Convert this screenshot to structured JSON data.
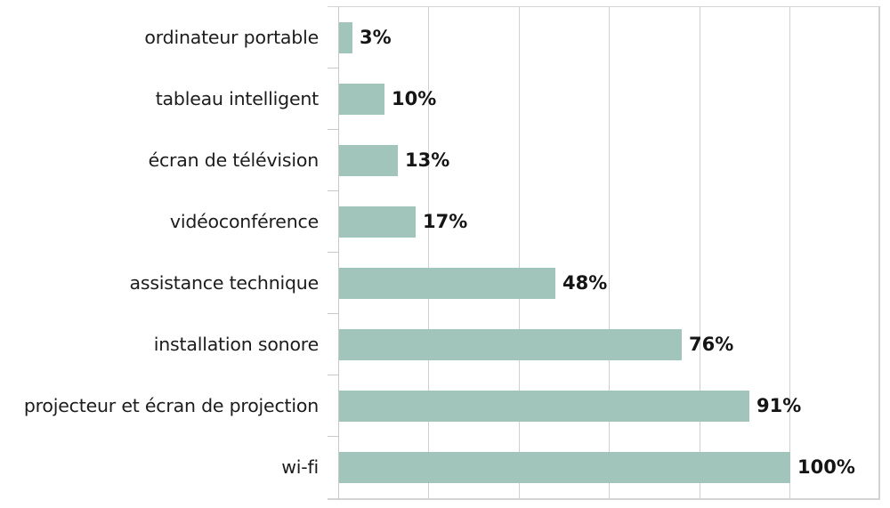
{
  "chart_data": {
    "type": "bar",
    "orientation": "horizontal",
    "title": "",
    "xlabel": "",
    "ylabel": "",
    "categories": [
      "ordinateur portable",
      "tableau intelligent",
      "écran de télévision",
      "vidéoconférence",
      "assistance technique",
      "installation sonore",
      "projecteur et écran de projection",
      "wi-fi"
    ],
    "values": [
      3,
      10,
      13,
      17,
      48,
      76,
      91,
      100
    ],
    "value_labels": [
      "3%",
      "10%",
      "13%",
      "17%",
      "48%",
      "76%",
      "91%",
      "100%"
    ],
    "xlim": [
      0,
      120
    ],
    "gridlines_x": [
      0,
      20,
      40,
      60,
      80,
      100,
      120
    ],
    "grid": true,
    "legend": "none",
    "bar_color": "#a2c5bb"
  }
}
